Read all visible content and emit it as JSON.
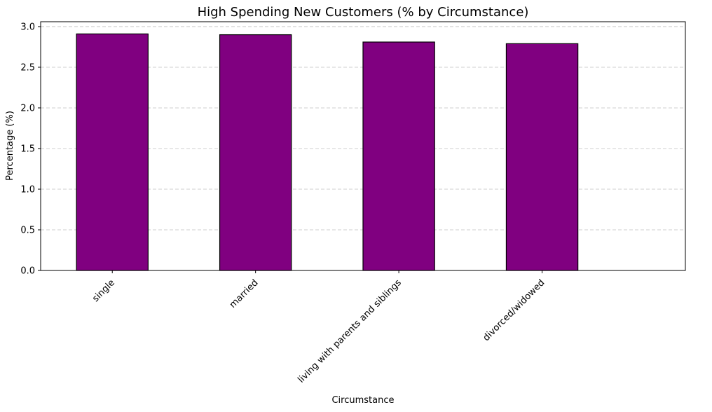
{
  "chart_data": {
    "type": "bar",
    "title": "High Spending New Customers (% by Circumstance)",
    "xlabel": "Circumstance",
    "ylabel": "Percentage (%)",
    "categories": [
      "single",
      "married",
      "living with parents and siblings",
      "divorced/widowed"
    ],
    "values": [
      2.91,
      2.9,
      2.81,
      2.79
    ],
    "ylim": [
      0,
      3.06
    ],
    "yticks": [
      "0.0",
      "0.5",
      "1.0",
      "1.5",
      "2.0",
      "2.5",
      "3.0"
    ],
    "bar_color": "#800080",
    "grid": "y-dashed",
    "legend": "none"
  }
}
